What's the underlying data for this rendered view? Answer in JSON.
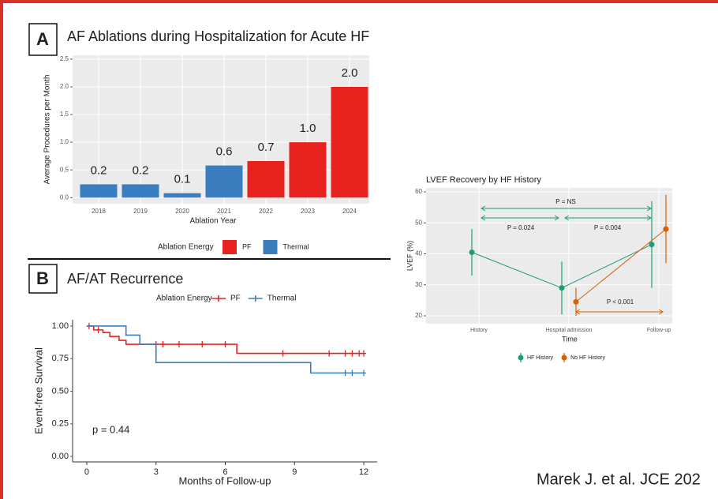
{
  "citation": "Marek J. et al. JCE 202",
  "chart_data": [
    {
      "type": "bar",
      "panel": "A",
      "title": "AF Ablations during Hospitalization for Acute HF",
      "x_label": "Ablation Year",
      "y_label": "Average Procedures per Month",
      "categories": [
        "2018",
        "2019",
        "2020",
        "2021",
        "2022",
        "2023",
        "2024"
      ],
      "legend_title": "Ablation Energy",
      "series": [
        {
          "name": "PF",
          "color": "#e8231f",
          "values": [
            null,
            null,
            null,
            null,
            0.66,
            1.0,
            2.0
          ],
          "value_labels": [
            null,
            null,
            null,
            null,
            "0.7",
            "1.0",
            "2.0"
          ]
        },
        {
          "name": "Thermal",
          "color": "#3a7ebf",
          "values": [
            0.24,
            0.24,
            0.08,
            0.58,
            null,
            null,
            null
          ],
          "value_labels": [
            "0.2",
            "0.2",
            "0.1",
            "0.6",
            null,
            null,
            null
          ]
        }
      ],
      "ylim": [
        -0.11,
        2.57
      ],
      "yticks": [
        {
          "value": 0,
          "label": "0.0"
        },
        0.5,
        {
          "value": 1,
          "label": "1.0"
        },
        1.5,
        {
          "value": 2,
          "label": "2.0"
        },
        2.5
      ],
      "grid": true
    },
    {
      "type": "step",
      "panel": "B",
      "title": "AF/AT Recurrence",
      "x_label": "Months of Follow-up",
      "y_label": "Event-free Survival",
      "legend_title": "Ablation Energy",
      "annotation": "p = 0.44",
      "series": [
        {
          "name": "PF",
          "color": "#e8231f",
          "x": [
            0,
            0.3,
            0.7,
            1.0,
            1.4,
            1.7,
            6.5,
            12
          ],
          "values": [
            1.0,
            0.97,
            0.95,
            0.92,
            0.89,
            0.86,
            0.79,
            0.79
          ],
          "censor_x": [
            0.1,
            0.5,
            3.0,
            3.3,
            4.0,
            5.0,
            6.0,
            8.5,
            10.5,
            11.2,
            11.5,
            11.8,
            12
          ],
          "censor_values": [
            1.0,
            0.97,
            0.86,
            0.86,
            0.86,
            0.86,
            0.86,
            0.79,
            0.79,
            0.79,
            0.79,
            0.79,
            0.79
          ]
        },
        {
          "name": "Thermal",
          "color": "#3a7ebf",
          "x": [
            0,
            1.7,
            2.3,
            3.0,
            9.7,
            12
          ],
          "values": [
            1.0,
            0.93,
            0.86,
            0.72,
            0.64,
            0.64
          ],
          "censor_x": [
            11.2,
            11.5,
            12
          ],
          "censor_values": [
            0.64,
            0.64,
            0.64
          ]
        }
      ],
      "xlim": [
        -0.615,
        12.58
      ],
      "xticks": [
        0,
        3,
        6,
        9,
        12
      ],
      "ylim": [
        -0.042,
        1.048
      ],
      "yticks": [
        {
          "value": 0,
          "label": "0.00"
        },
        0.25,
        {
          "value": 0.5,
          "label": "0.50"
        },
        0.75,
        {
          "value": 1,
          "label": "1.00"
        }
      ]
    },
    {
      "type": "pointrange",
      "title": "LVEF Recovery by HF History",
      "x_label": "Time",
      "y_label": "LVEF (%)",
      "categories": [
        "History",
        "Hospital admission",
        "Follow-up"
      ],
      "series": [
        {
          "name": "HF History",
          "color": "#1b9e77",
          "values": [
            40.5,
            29,
            43
          ],
          "error": [
            7.5,
            8.5,
            14
          ]
        },
        {
          "name": "No HF History",
          "color": "#d95f02",
          "values": [
            null,
            24.5,
            48
          ],
          "error": [
            null,
            4.5,
            11
          ]
        }
      ],
      "annotations": [
        "P = NS",
        "P = 0.024",
        "P = 0.004",
        "P < 0.001"
      ],
      "ylim": [
        17.45,
        61.27
      ],
      "yticks": [
        20,
        30,
        40,
        50,
        60
      ],
      "grid": true
    }
  ]
}
